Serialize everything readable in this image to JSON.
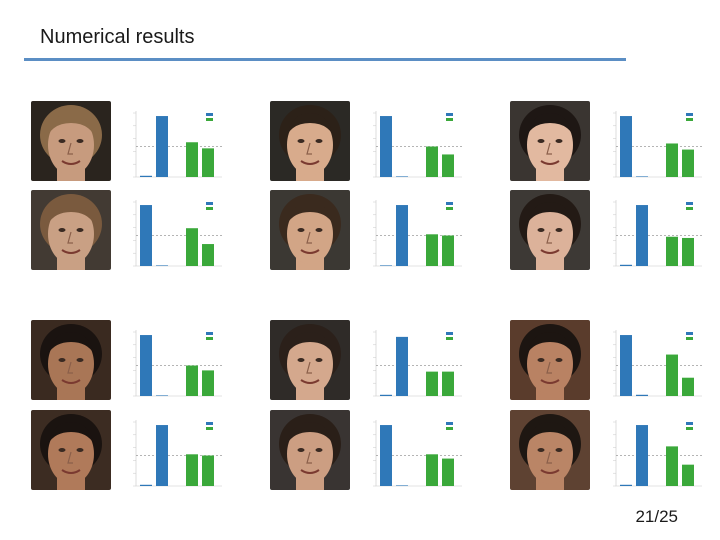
{
  "slide": {
    "title": "Numerical results",
    "page": "21/25",
    "accent_color": "#5b8ec4"
  },
  "colors": {
    "bar_blue": "#2f78b8",
    "bar_green": "#3aa83a"
  },
  "chart_data": [
    {
      "type": "bar",
      "series": [
        {
          "values": [
            0.02,
            1.0
          ]
        },
        {
          "values": [
            0.57,
            0.47
          ]
        }
      ],
      "ylim": [
        0,
        1.05
      ],
      "grid": false
    },
    {
      "type": "bar",
      "series": [
        {
          "values": [
            1.0,
            0.0
          ]
        },
        {
          "values": [
            0.5,
            0.37
          ]
        }
      ],
      "ylim": [
        0,
        1.05
      ],
      "grid": false
    },
    {
      "type": "bar",
      "series": [
        {
          "values": [
            1.0,
            0.0
          ]
        },
        {
          "values": [
            0.55,
            0.45
          ]
        }
      ],
      "ylim": [
        0,
        1.05
      ],
      "grid": false
    },
    {
      "type": "bar",
      "series": [
        {
          "values": [
            1.0,
            0.0
          ]
        },
        {
          "values": [
            0.62,
            0.36
          ]
        }
      ],
      "ylim": [
        0,
        1.05
      ],
      "grid": false
    },
    {
      "type": "bar",
      "series": [
        {
          "values": [
            0.0,
            1.0
          ]
        },
        {
          "values": [
            0.52,
            0.5
          ]
        }
      ],
      "ylim": [
        0,
        1.05
      ],
      "grid": false
    },
    {
      "type": "bar",
      "series": [
        {
          "values": [
            0.02,
            1.0
          ]
        },
        {
          "values": [
            0.48,
            0.46
          ]
        }
      ],
      "ylim": [
        0,
        1.05
      ],
      "grid": false
    },
    {
      "type": "bar",
      "series": [
        {
          "values": [
            1.0,
            0.0
          ]
        },
        {
          "values": [
            0.5,
            0.42
          ]
        }
      ],
      "ylim": [
        0,
        1.05
      ],
      "grid": false
    },
    {
      "type": "bar",
      "series": [
        {
          "values": [
            0.02,
            0.97
          ]
        },
        {
          "values": [
            0.4,
            0.4
          ]
        }
      ],
      "ylim": [
        0,
        1.05
      ],
      "grid": false
    },
    {
      "type": "bar",
      "series": [
        {
          "values": [
            1.0,
            0.02
          ]
        },
        {
          "values": [
            0.68,
            0.3
          ]
        }
      ],
      "ylim": [
        0,
        1.05
      ],
      "grid": false
    },
    {
      "type": "bar",
      "series": [
        {
          "values": [
            0.02,
            1.0
          ]
        },
        {
          "values": [
            0.52,
            0.5
          ]
        }
      ],
      "ylim": [
        0,
        1.05
      ],
      "grid": false
    },
    {
      "type": "bar",
      "series": [
        {
          "values": [
            1.0,
            0.0
          ]
        },
        {
          "values": [
            0.52,
            0.45
          ]
        }
      ],
      "ylim": [
        0,
        1.05
      ],
      "grid": false
    },
    {
      "type": "bar",
      "series": [
        {
          "values": [
            0.02,
            1.0
          ]
        },
        {
          "values": [
            0.65,
            0.35
          ]
        }
      ],
      "ylim": [
        0,
        1.05
      ],
      "grid": false
    }
  ],
  "faces": [
    {
      "bg": "#2a241e",
      "skin": "#c79b7e",
      "hair": "#8a6a48"
    },
    {
      "bg": "#2b2925",
      "skin": "#d8ab8c",
      "hair": "#2c2118"
    },
    {
      "bg": "#3a3531",
      "skin": "#e2b9a0",
      "hair": "#1e1714"
    },
    {
      "bg": "#423a33",
      "skin": "#c9a084",
      "hair": "#7a5a3e"
    },
    {
      "bg": "#3b3833",
      "skin": "#d2a586",
      "hair": "#3a2a1e"
    },
    {
      "bg": "#3d3935",
      "skin": "#dcb29a",
      "hair": "#231a15"
    },
    {
      "bg": "#3a2a20",
      "skin": "#a97656",
      "hair": "#1a1310"
    },
    {
      "bg": "#2f2b28",
      "skin": "#d4a88d",
      "hair": "#2b201a"
    },
    {
      "bg": "#5a3c2c",
      "skin": "#b98263",
      "hair": "#1c1511"
    },
    {
      "bg": "#3c2c22",
      "skin": "#b07a5a",
      "hair": "#1a1310"
    },
    {
      "bg": "#393432",
      "skin": "#cc9e82",
      "hair": "#2a1f18"
    },
    {
      "bg": "#5e4232",
      "skin": "#ba8566",
      "hair": "#1e1712"
    }
  ]
}
